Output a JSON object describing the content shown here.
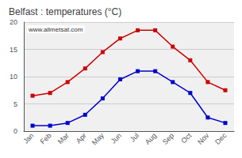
{
  "chart_data": {
    "type": "line",
    "title": "Belfast : temperatures (°C)",
    "categories": [
      "Jan",
      "Feb",
      "Mar",
      "Apr",
      "May",
      "Jun",
      "Jul",
      "Aug",
      "Sep",
      "Oct",
      "Nov",
      "Dec"
    ],
    "series": [
      {
        "color": "#cc0000",
        "marker": "square",
        "values": [
          6.5,
          7.0,
          9.0,
          11.5,
          14.5,
          17.0,
          18.5,
          18.5,
          15.5,
          13.0,
          9.0,
          7.5
        ]
      },
      {
        "color": "#0000cc",
        "marker": "square",
        "values": [
          1.0,
          1.0,
          1.5,
          3.0,
          6.0,
          9.5,
          11.0,
          11.0,
          9.0,
          7.0,
          2.5,
          1.5
        ]
      }
    ],
    "ylim": [
      0,
      20
    ],
    "yticks": [
      0,
      5,
      10,
      15,
      20
    ],
    "grid": true,
    "annotation": "www.allmetsat.com"
  }
}
